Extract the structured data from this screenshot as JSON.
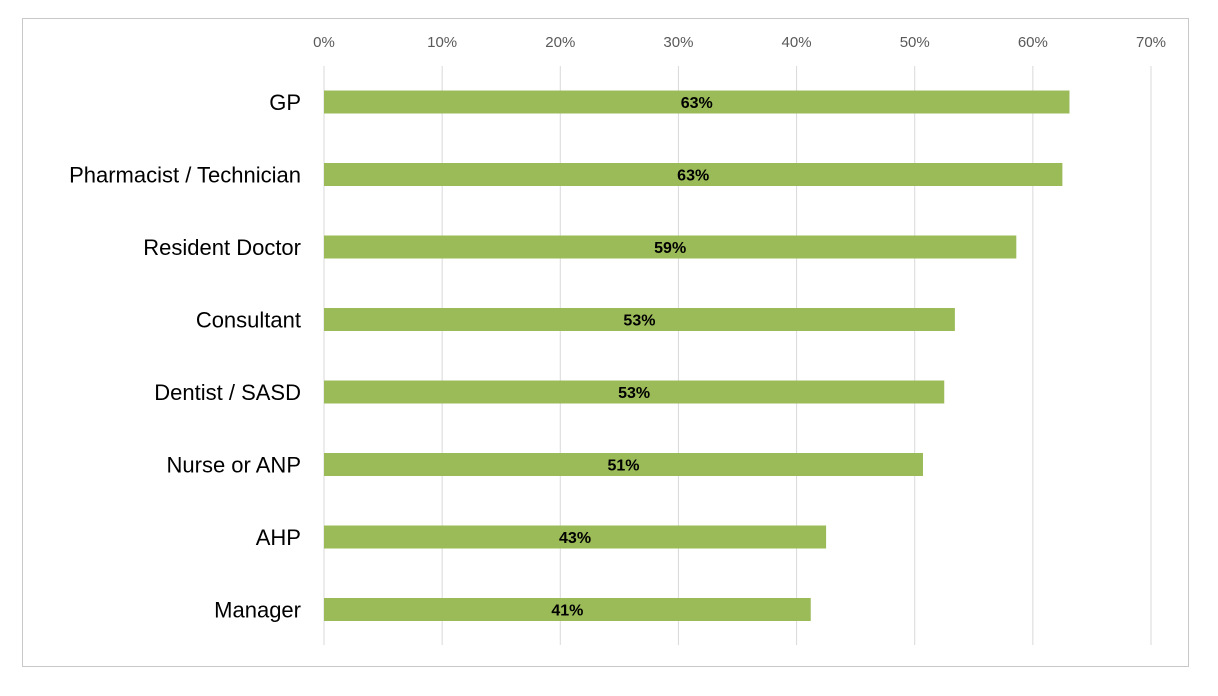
{
  "chart_data": {
    "type": "bar",
    "orientation": "horizontal",
    "categories": [
      "GP",
      "Pharmacist / Technician",
      "Resident Doctor",
      "Consultant",
      "Dentist / SASD",
      "Nurse or ANP",
      "AHP",
      "Manager"
    ],
    "values": [
      63.1,
      62.5,
      58.6,
      53.4,
      52.5,
      50.7,
      42.5,
      41.2
    ],
    "data_labels": [
      "63%",
      "63%",
      "59%",
      "53%",
      "53%",
      "51%",
      "43%",
      "41%"
    ],
    "x_ticks": [
      "0%",
      "10%",
      "20%",
      "30%",
      "40%",
      "50%",
      "60%",
      "70%"
    ],
    "xlim": [
      0,
      70
    ],
    "grid": true,
    "bar_color": "#9bbb59",
    "gridline_color": "#d9d9d9"
  }
}
